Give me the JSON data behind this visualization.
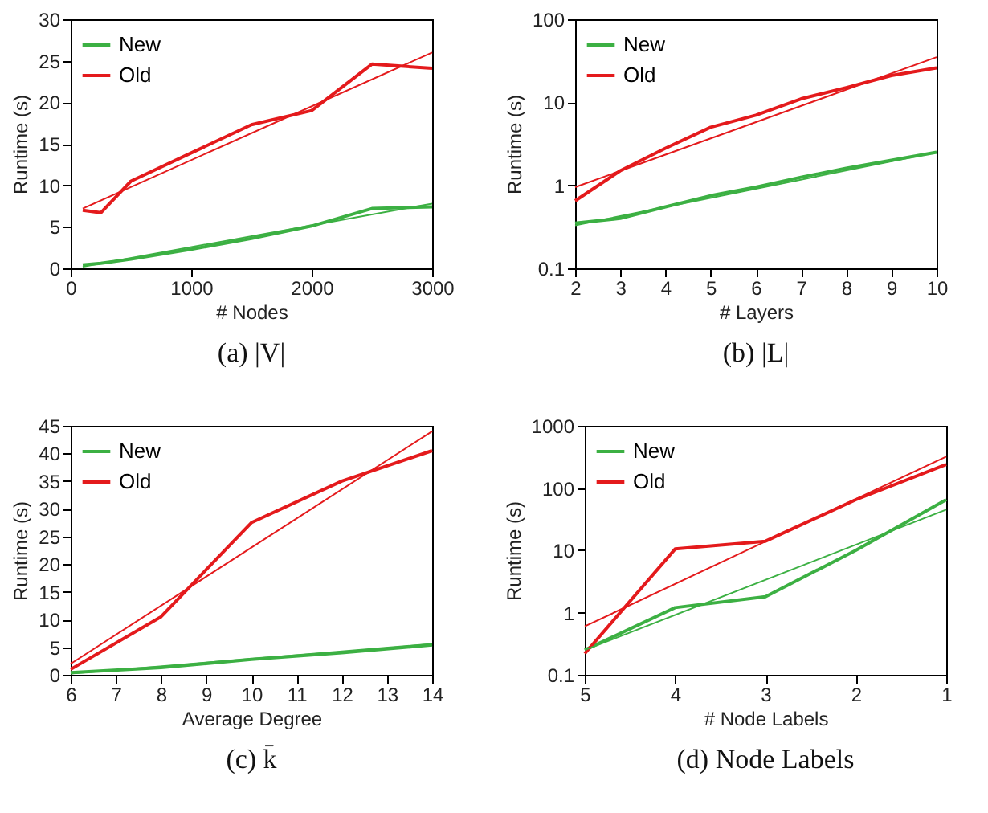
{
  "chart_data": [
    {
      "type": "line",
      "title": "(a) |V|",
      "xlabel": "# Nodes",
      "ylabel": "Runtime (s)",
      "xlim": [
        0,
        3000
      ],
      "xticks": [
        0,
        1000,
        2000,
        3000
      ],
      "ylim": [
        0,
        30
      ],
      "yticks": [
        0,
        5,
        10,
        15,
        20,
        25,
        30
      ],
      "grid": false,
      "legend": "top left",
      "x": [
        100,
        250,
        500,
        1000,
        1500,
        2000,
        2500,
        3000
      ],
      "series": [
        {
          "name": "New",
          "color": "#3cb043",
          "values": [
            0.4,
            0.6,
            1.1,
            2.3,
            3.6,
            5.1,
            7.2,
            7.4
          ]
        },
        {
          "name": "Old",
          "color": "#e41a1c",
          "values": [
            7,
            6.7,
            10.5,
            13.9,
            17.3,
            19,
            24.6,
            24.1
          ]
        },
        {
          "color": "#3cb043",
          "x": [
            100,
            3000
          ],
          "values": [
            0.2,
            7.8
          ]
        },
        {
          "color": "#e41a1c",
          "x": [
            100,
            3000
          ],
          "values": [
            7.2,
            26
          ]
        }
      ]
    },
    {
      "type": "line",
      "title": "(b) |L|",
      "xlabel": "# Layers",
      "ylabel": "Runtime (s)",
      "log": "y",
      "xlim": [
        2,
        10
      ],
      "xticks": [
        2,
        3,
        4,
        5,
        6,
        7,
        8,
        9,
        10
      ],
      "ylim": [
        0.1,
        100
      ],
      "yticks": [
        0.1,
        1,
        10,
        100
      ],
      "grid": false,
      "legend": "top left",
      "x": [
        2,
        3,
        4,
        5,
        6,
        7,
        8,
        9,
        10
      ],
      "series": [
        {
          "name": "New",
          "color": "#3cb043",
          "values": [
            0.35,
            0.4,
            0.55,
            0.75,
            0.95,
            1.25,
            1.6,
            2.0,
            2.5
          ]
        },
        {
          "name": "Old",
          "color": "#e41a1c",
          "values": [
            0.65,
            1.5,
            2.8,
            5,
            7,
            11,
            15,
            21,
            26
          ]
        },
        {
          "color": "#3cb043",
          "x": [
            2,
            10
          ],
          "values": [
            0.33,
            2.5
          ]
        },
        {
          "color": "#e41a1c",
          "x": [
            2,
            10
          ],
          "values": [
            0.95,
            35
          ]
        }
      ]
    },
    {
      "type": "line",
      "title": "(c) k̄",
      "xlabel": "Average Degree",
      "ylabel": "Runtime (s)",
      "xlim": [
        6,
        14
      ],
      "xticks": [
        6,
        7,
        8,
        9,
        10,
        11,
        12,
        13,
        14
      ],
      "ylim": [
        0,
        45
      ],
      "yticks": [
        0,
        5,
        10,
        15,
        20,
        25,
        30,
        35,
        40,
        45
      ],
      "grid": false,
      "legend": "top left",
      "x": [
        6,
        8,
        10,
        12,
        14
      ],
      "series": [
        {
          "name": "New",
          "color": "#3cb043",
          "values": [
            0.4,
            1.3,
            2.8,
            4,
            5.4
          ]
        },
        {
          "name": "Old",
          "color": "#e41a1c",
          "values": [
            1,
            10.5,
            27.5,
            35,
            40.5
          ]
        },
        {
          "color": "#3cb043",
          "x": [
            6,
            14
          ],
          "values": [
            0.2,
            5.6
          ]
        },
        {
          "color": "#e41a1c",
          "x": [
            6,
            14
          ],
          "values": [
            2,
            44
          ]
        }
      ]
    },
    {
      "type": "line",
      "title": "(d) Node Labels",
      "xlabel": "# Node Labels",
      "ylabel": "Runtime (s)",
      "log": "y",
      "xlim": [
        5,
        1
      ],
      "xticks": [
        5,
        4,
        3,
        2,
        1
      ],
      "ylim": [
        0.1,
        1000
      ],
      "yticks": [
        0.1,
        1,
        10,
        100,
        1000
      ],
      "grid": false,
      "legend": "top left",
      "x": [
        5,
        4,
        3,
        2,
        1
      ],
      "series": [
        {
          "name": "New",
          "color": "#3cb043",
          "values": [
            0.25,
            1.2,
            1.8,
            10,
            65
          ]
        },
        {
          "name": "Old",
          "color": "#e41a1c",
          "values": [
            0.22,
            10.5,
            14,
            65,
            240
          ]
        },
        {
          "color": "#3cb043",
          "x": [
            5,
            1
          ],
          "values": [
            0.25,
            45
          ]
        },
        {
          "color": "#e41a1c",
          "x": [
            5,
            1
          ],
          "values": [
            0.6,
            320
          ]
        }
      ]
    }
  ]
}
